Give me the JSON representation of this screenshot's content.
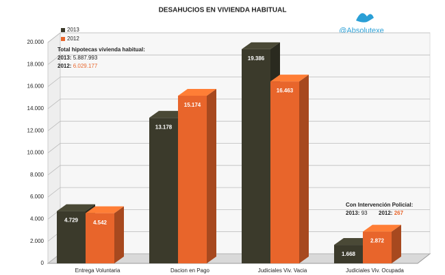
{
  "chart_data": {
    "type": "bar",
    "title": "DESAHUCIOS EN VIVIENDA HABITUAL",
    "watermark": "@Absolutexe",
    "categories": [
      "Entrega Voluntaria",
      "Dacion en Pago",
      "Judiciales Viv. Vacia",
      "Judiciales Viv. Ocupada"
    ],
    "series": [
      {
        "name": "2013",
        "color": "#3b3a2b",
        "values": [
          4729,
          13178,
          19386,
          1668
        ],
        "value_labels": [
          "4.729",
          "13.178",
          "19.386",
          "1.668"
        ]
      },
      {
        "name": "2012",
        "color": "#e8652b",
        "values": [
          4542,
          15174,
          16463,
          2872
        ],
        "value_labels": [
          "4.542",
          "15.174",
          "16.463",
          "2.872"
        ]
      }
    ],
    "ylim": [
      0,
      20000
    ],
    "yticks": [
      0,
      {
        "value": 2000,
        "label": "2.000"
      },
      {
        "value": 4000,
        "label": "4.000"
      },
      {
        "value": 6000,
        "label": "6.000"
      },
      {
        "value": 8000,
        "label": "8.000"
      },
      {
        "value": 10000,
        "label": "10.000"
      },
      {
        "value": 12000,
        "label": "12.000"
      },
      {
        "value": 14000,
        "label": "14.000"
      },
      {
        "value": 16000,
        "label": "16.000"
      },
      {
        "value": 18000,
        "label": "18.000"
      },
      {
        "value": 20000,
        "label": "20.000"
      }
    ],
    "grid": true,
    "legend": "top-left",
    "annotations": [
      {
        "title": "Total hipotecas vivienda habitual:",
        "items": [
          {
            "label": "2013:",
            "value": "5.887.993"
          },
          {
            "label": "2012:",
            "value": "6.029.177"
          }
        ]
      },
      {
        "title": "Con Intervención Policial:",
        "items": [
          {
            "label": "2013:",
            "value": "93"
          },
          {
            "label": "2012:",
            "value": "267"
          }
        ]
      }
    ]
  }
}
